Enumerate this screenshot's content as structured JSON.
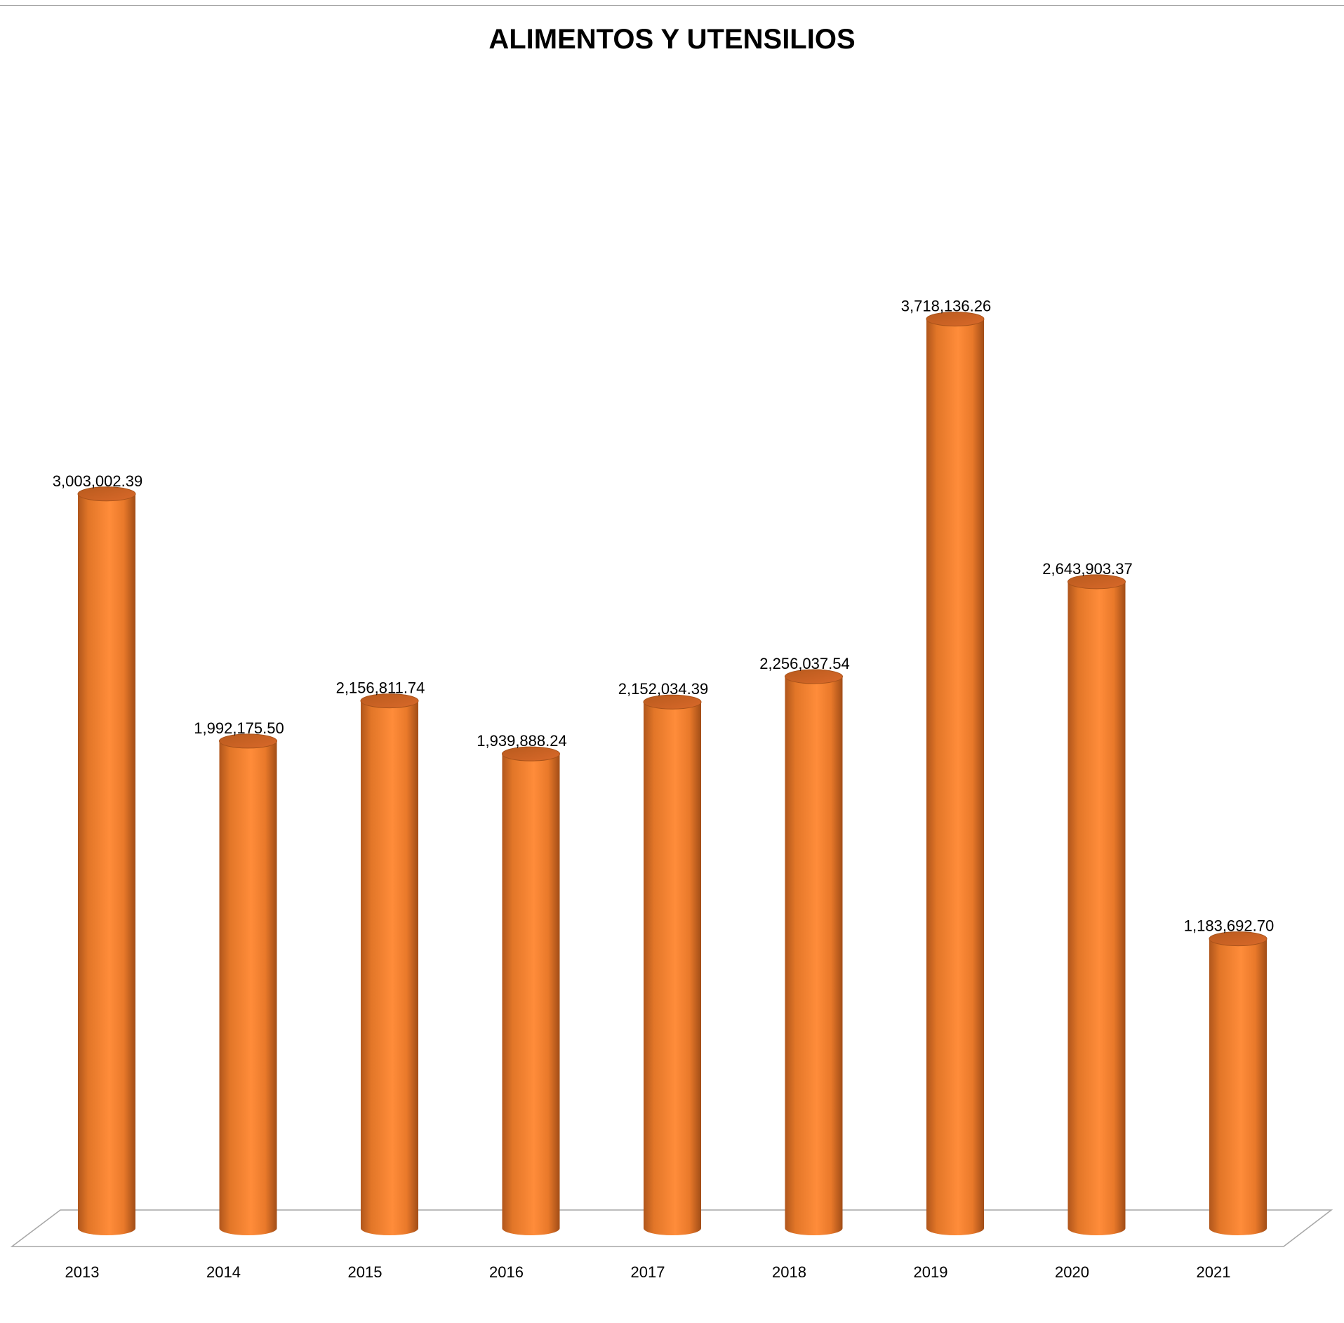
{
  "chart_data": {
    "type": "bar",
    "title": "ALIMENTOS Y UTENSILIOS",
    "categories": [
      "2013",
      "2014",
      "2015",
      "2016",
      "2017",
      "2018",
      "2019",
      "2020",
      "2021"
    ],
    "values": [
      3003002.39,
      1992175.5,
      2156811.74,
      1939888.24,
      2152034.39,
      2256037.54,
      3718136.26,
      2643903.37,
      1183692.7
    ],
    "data_labels": [
      "3,003,002.39",
      "1,992,175.50",
      "2,156,811.74",
      "1,939,888.24",
      "2,152,034.39",
      "2,256,037.54",
      "3,718,136.26",
      "2,643,903.37",
      "1,183,692.70"
    ],
    "xlabel": "",
    "ylabel": "",
    "ylim": [
      0,
      4000000
    ],
    "grid": false,
    "legend": "none",
    "bar_color": "#f58634",
    "bar_shape": "cylinder"
  }
}
